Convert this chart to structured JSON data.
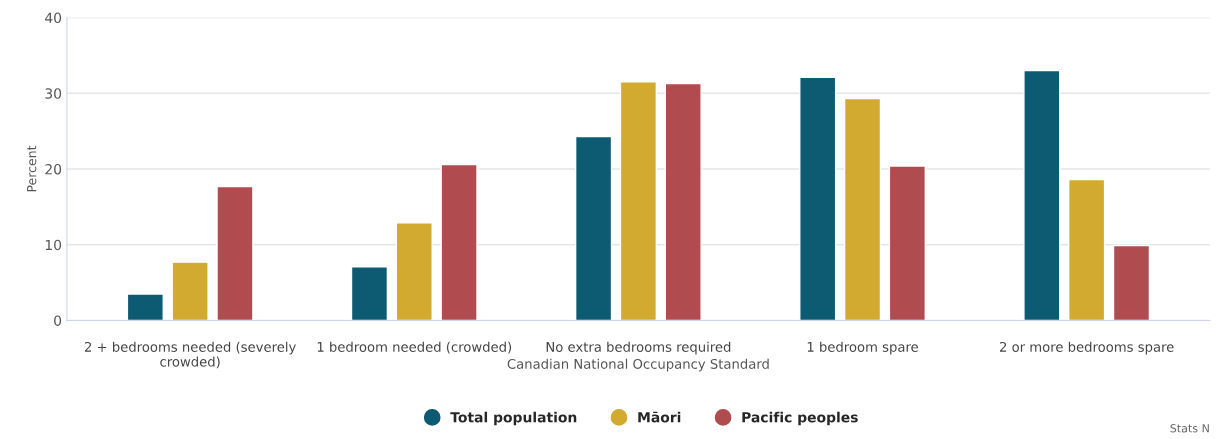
{
  "chart_data": {
    "type": "bar",
    "xlabel": "Canadian National Occupancy Standard",
    "ylabel": "Percent",
    "categories": [
      "2 + bedrooms needed (severely crowded)",
      "1 bedroom needed (crowded)",
      "No extra bedrooms required",
      "1 bedroom spare",
      "2 or more bedrooms spare"
    ],
    "series": [
      {
        "name": "Total population",
        "color": "#0d5a73",
        "values": [
          3.5,
          7.1,
          24.3,
          32.1,
          33.0
        ]
      },
      {
        "name": "Māori",
        "color": "#d2aa2f",
        "values": [
          7.7,
          12.9,
          31.5,
          29.3,
          18.6
        ]
      },
      {
        "name": "Pacific peoples",
        "color": "#b04b4f",
        "values": [
          17.7,
          20.6,
          31.3,
          20.4,
          9.9
        ]
      }
    ],
    "ylim": [
      0,
      40
    ],
    "yticks": [
      0,
      10,
      20,
      30,
      40
    ],
    "grid": "y",
    "legend": "bottom",
    "annotations": [
      "Stats N"
    ]
  }
}
